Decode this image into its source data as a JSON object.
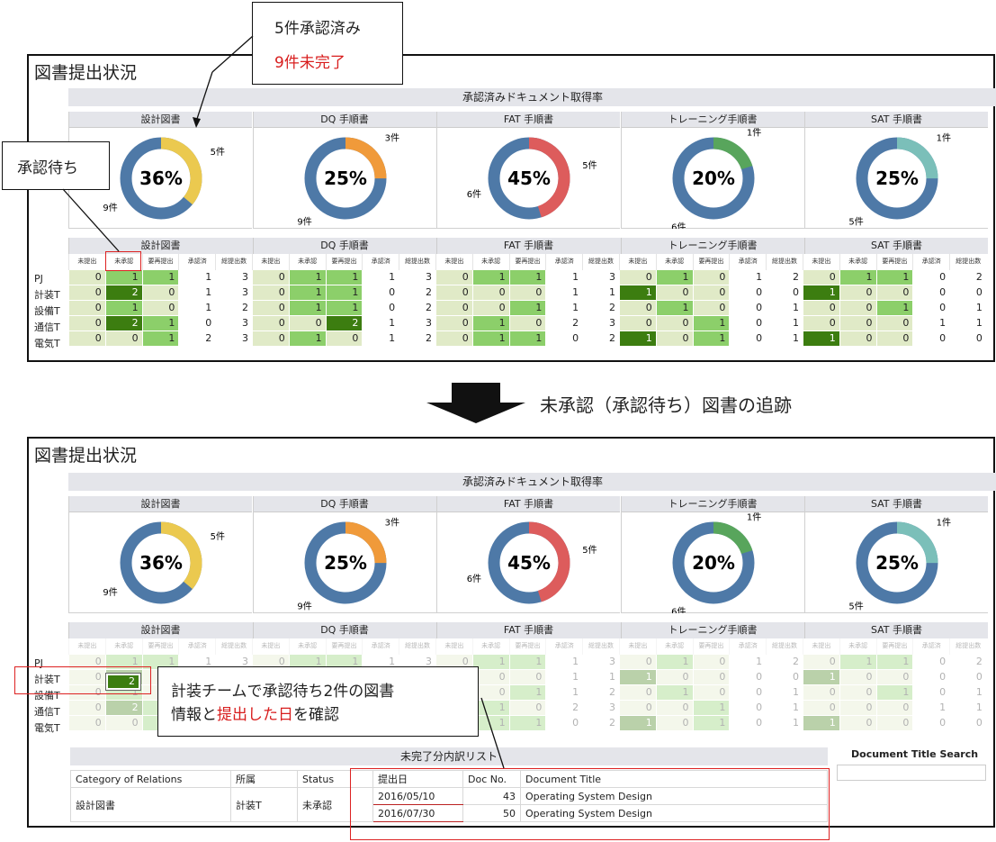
{
  "panel_title": "図書提出状況",
  "banner": "承認済みドキュメント取得率",
  "groups": [
    {
      "name": "設計図書",
      "pct": "36%",
      "frac": 0.36,
      "color": "#ebc94f",
      "rem": "9件",
      "done": "5件"
    },
    {
      "name": "DQ 手順書",
      "pct": "25%",
      "frac": 0.25,
      "color": "#f09a3a",
      "rem": "9件",
      "done": "3件"
    },
    {
      "name": "FAT 手順書",
      "pct": "45%",
      "frac": 0.45,
      "color": "#dd5c5c",
      "rem": "6件",
      "done": "5件"
    },
    {
      "name": "トレーニング手順書",
      "pct": "20%",
      "frac": 0.2,
      "color": "#58a55c",
      "rem": "6件",
      "done": "1件"
    },
    {
      "name": "SAT 手順書",
      "pct": "25%",
      "frac": 0.25,
      "color": "#7bbfb9",
      "rem": "5件",
      "done": "1件"
    }
  ],
  "sub_headers": [
    "未提出",
    "未承認",
    "要再提出",
    "承認済",
    "総提出数"
  ],
  "rows": [
    {
      "label": "PJ",
      "cells": [
        [
          0,
          1,
          1,
          1,
          3
        ],
        [
          0,
          1,
          1,
          1,
          3
        ],
        [
          0,
          1,
          1,
          1,
          3
        ],
        [
          0,
          1,
          0,
          1,
          2
        ],
        [
          0,
          1,
          1,
          0,
          2
        ]
      ]
    },
    {
      "label": "計装T",
      "cells": [
        [
          0,
          2,
          0,
          1,
          3
        ],
        [
          0,
          1,
          1,
          0,
          2
        ],
        [
          0,
          0,
          0,
          1,
          1
        ],
        [
          1,
          0,
          0,
          0,
          0
        ],
        [
          1,
          0,
          0,
          0,
          0
        ]
      ]
    },
    {
      "label": "設備T",
      "cells": [
        [
          0,
          1,
          0,
          1,
          2
        ],
        [
          0,
          1,
          1,
          0,
          2
        ],
        [
          0,
          0,
          1,
          1,
          2
        ],
        [
          0,
          1,
          0,
          0,
          1
        ],
        [
          0,
          0,
          1,
          0,
          1
        ]
      ]
    },
    {
      "label": "通信T",
      "cells": [
        [
          0,
          2,
          1,
          0,
          3
        ],
        [
          0,
          0,
          2,
          1,
          3
        ],
        [
          0,
          1,
          0,
          2,
          3
        ],
        [
          0,
          0,
          1,
          0,
          1
        ],
        [
          0,
          0,
          0,
          1,
          1
        ]
      ]
    },
    {
      "label": "電気T",
      "cells": [
        [
          0,
          0,
          1,
          2,
          3
        ],
        [
          0,
          1,
          0,
          1,
          2
        ],
        [
          0,
          1,
          1,
          0,
          2
        ],
        [
          1,
          0,
          1,
          0,
          1
        ],
        [
          1,
          0,
          0,
          0,
          0
        ]
      ]
    }
  ],
  "callouts": {
    "approved": "5件承認済み",
    "incomplete": "9件未完了",
    "pending": "承認待ち",
    "arrow_text": "未承認（承認待ち）図書の追跡",
    "team_line1": "計装チームで承認待ち2件の図書",
    "team_line2_a": "情報と",
    "team_line2_b": "提出した日",
    "team_line2_c": "を確認"
  },
  "highlight_value": "2",
  "list_title": "未完了分内訳リスト",
  "search_label": "Document Title Search",
  "list": {
    "headers": [
      "Category of Relations",
      "所属",
      "Status",
      "提出日",
      "Doc No.",
      "Document Title"
    ],
    "category": "設計図書",
    "dept": "計装T",
    "status": "未承認",
    "rows": [
      {
        "date": "2016/05/10",
        "no": "43",
        "title": "Operating System Design"
      },
      {
        "date": "2016/07/30",
        "no": "50",
        "title": "Operating System Design"
      }
    ]
  }
}
